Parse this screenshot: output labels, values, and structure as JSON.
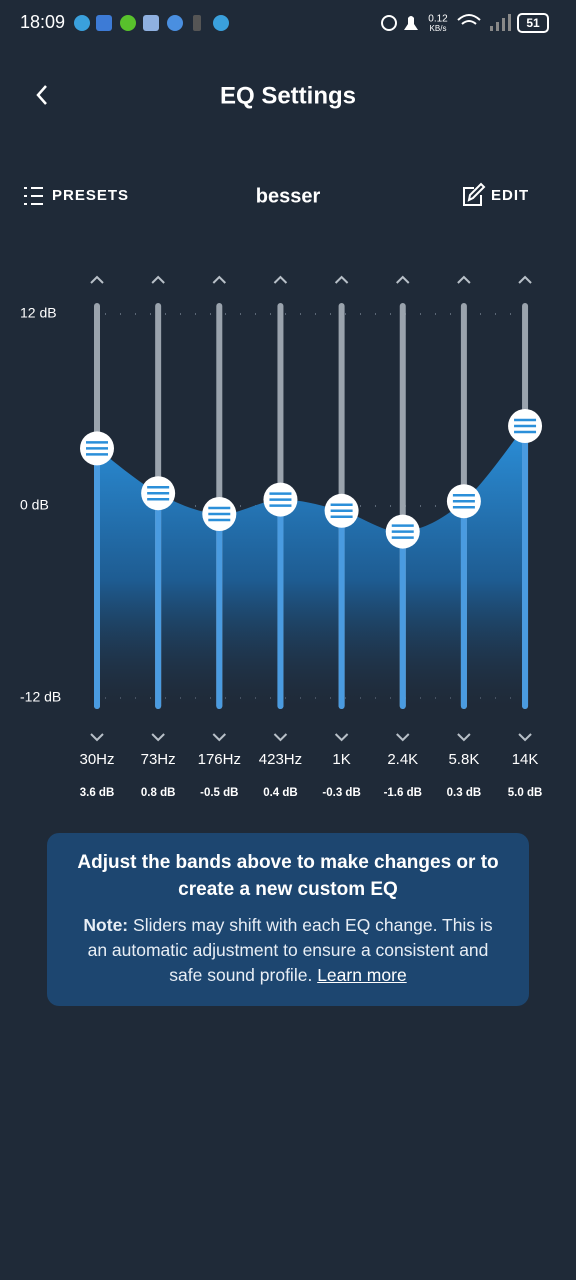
{
  "status_bar": {
    "time": "18:09",
    "speed": "0.12",
    "speed_unit": "KB/s",
    "battery": "51"
  },
  "header": {
    "title": "EQ Settings"
  },
  "toolbar": {
    "presets": "PRESETS",
    "preset_name": "besser",
    "edit": "EDIT"
  },
  "chart_data": {
    "type": "eq",
    "categories": [
      "30Hz",
      "73Hz",
      "176Hz",
      "423Hz",
      "1K",
      "2.4K",
      "5.8K",
      "14K"
    ],
    "values": [
      3.6,
      0.8,
      -0.5,
      0.4,
      -0.3,
      -1.6,
      0.3,
      5.0
    ],
    "value_labels": [
      "3.6 dB",
      "0.8 dB",
      "-0.5 dB",
      "0.4 dB",
      "-0.3 dB",
      "-1.6 dB",
      "0.3 dB",
      "5.0 dB"
    ],
    "ylim": [
      -12.5,
      12.5
    ],
    "yticks": [
      {
        "value": 12,
        "label": "12 dB"
      },
      {
        "value": 0,
        "label": "0 dB"
      },
      {
        "value": -12,
        "label": "-12 dB"
      }
    ],
    "color": "#2b8fd9",
    "grid": true
  },
  "info": {
    "title": "Adjust the bands above to make changes or to create a new custom EQ",
    "note_label": "Note:",
    "note_text": "Sliders may shift with each EQ change. This is an automatic adjustment to ensure a consistent and safe sound profile.",
    "link": "Learn more"
  }
}
